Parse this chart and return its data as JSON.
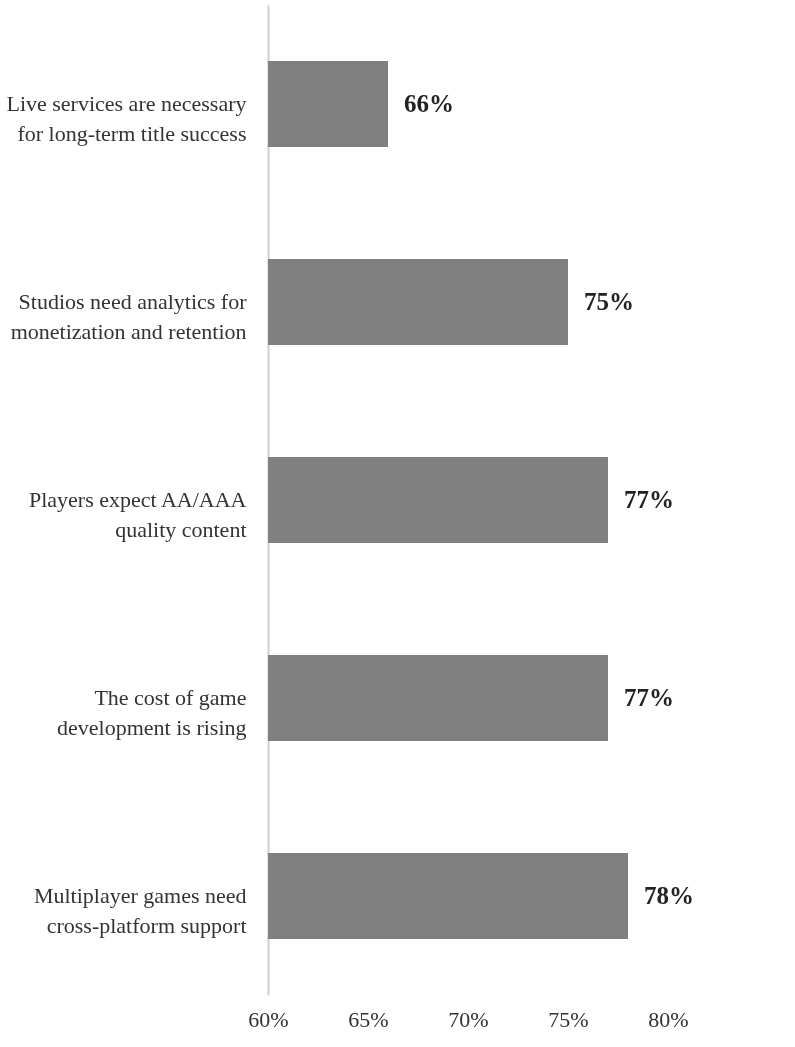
{
  "chart_data": {
    "type": "bar",
    "orientation": "horizontal",
    "categories": [
      "Live services are necessary for long-term title success",
      "Studios need analytics for monetization and retention",
      "Players expect AA/AAA quality content",
      "The cost of game development is rising",
      "Multiplayer games need cross-platform support"
    ],
    "values": [
      66,
      75,
      77,
      77,
      78
    ],
    "value_labels": [
      "66%",
      "75%",
      "77%",
      "77%",
      "78%"
    ],
    "color": "#808080",
    "xlim": [
      60,
      80
    ],
    "xticks": [
      {
        "value": 60,
        "label": "60%"
      },
      {
        "value": 65,
        "label": "65%"
      },
      {
        "value": 70,
        "label": "70%"
      },
      {
        "value": 75,
        "label": "75%"
      },
      {
        "value": 80,
        "label": "80%"
      }
    ],
    "grid": false
  }
}
